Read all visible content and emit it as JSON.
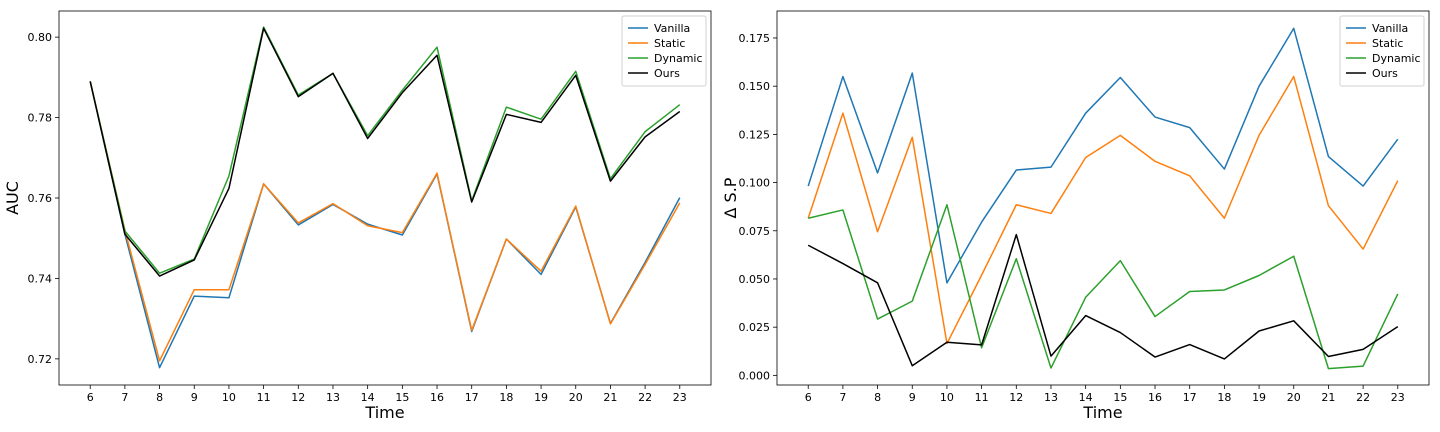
{
  "chart_data": [
    {
      "type": "line",
      "xlabel": "Time",
      "ylabel": "AUC",
      "x": [
        6,
        7,
        8,
        9,
        10,
        11,
        12,
        13,
        14,
        15,
        16,
        17,
        18,
        19,
        20,
        21,
        22,
        23
      ],
      "xlim": [
        5.1,
        23.9
      ],
      "ylim": [
        0.7135,
        0.8065
      ],
      "yticks": [
        0.72,
        0.74,
        0.76,
        0.78,
        0.8
      ],
      "ytick_labels": [
        "0.72",
        "0.74",
        "0.76",
        "0.78",
        "0.80"
      ],
      "grid": false,
      "legend": "top-right",
      "series": [
        {
          "name": "Vanilla",
          "color": "#1f77b4",
          "values": [
            0.789,
            0.751,
            0.7178,
            0.7356,
            0.7352,
            0.7635,
            0.7533,
            0.7584,
            0.7535,
            0.7508,
            0.766,
            0.7268,
            0.7498,
            0.741,
            0.7578,
            0.7288,
            0.744,
            0.7601
          ]
        },
        {
          "name": "Static",
          "color": "#ff7f0e",
          "values": [
            0.789,
            0.752,
            0.7195,
            0.7372,
            0.7372,
            0.7635,
            0.7538,
            0.7586,
            0.7531,
            0.7514,
            0.7662,
            0.7271,
            0.7498,
            0.7418,
            0.758,
            0.7287,
            0.7435,
            0.7588
          ]
        },
        {
          "name": "Dynamic",
          "color": "#2ca02c",
          "values": [
            0.789,
            0.7518,
            0.7413,
            0.7448,
            0.7655,
            0.8025,
            0.7856,
            0.791,
            0.7755,
            0.7868,
            0.7975,
            0.7593,
            0.7826,
            0.7796,
            0.7915,
            0.7648,
            0.7765,
            0.7832
          ]
        },
        {
          "name": "Ours",
          "color": "#000000",
          "values": [
            0.789,
            0.751,
            0.7406,
            0.7446,
            0.7624,
            0.8022,
            0.7852,
            0.791,
            0.7748,
            0.7862,
            0.7955,
            0.759,
            0.7808,
            0.7788,
            0.7905,
            0.7642,
            0.7752,
            0.7815
          ]
        }
      ]
    },
    {
      "type": "line",
      "xlabel": "Time",
      "ylabel": "Δ S.P",
      "x": [
        6,
        7,
        8,
        9,
        10,
        11,
        12,
        13,
        14,
        15,
        16,
        17,
        18,
        19,
        20,
        21,
        22,
        23
      ],
      "xlim": [
        5.1,
        23.9
      ],
      "ylim": [
        -0.005,
        0.189
      ],
      "yticks": [
        0.0,
        0.025,
        0.05,
        0.075,
        0.1,
        0.125,
        0.15,
        0.175
      ],
      "ytick_labels": [
        "0.000",
        "0.025",
        "0.050",
        "0.075",
        "0.100",
        "0.125",
        "0.150",
        "0.175"
      ],
      "grid": false,
      "legend": "top-right",
      "series": [
        {
          "name": "Vanilla",
          "color": "#1f77b4",
          "values": [
            0.0982,
            0.155,
            0.105,
            0.1568,
            0.048,
            0.0795,
            0.1065,
            0.108,
            0.136,
            0.1545,
            0.134,
            0.1285,
            0.107,
            0.15,
            0.18,
            0.1135,
            0.0982,
            0.1225
          ]
        },
        {
          "name": "Static",
          "color": "#ff7f0e",
          "values": [
            0.0815,
            0.136,
            0.0745,
            0.1235,
            0.0165,
            0.052,
            0.0885,
            0.084,
            0.113,
            0.1245,
            0.111,
            0.1035,
            0.0815,
            0.1245,
            0.155,
            0.088,
            0.0655,
            0.101
          ]
        },
        {
          "name": "Dynamic",
          "color": "#2ca02c",
          "values": [
            0.0815,
            0.0858,
            0.0292,
            0.0385,
            0.0885,
            0.0143,
            0.0605,
            0.0038,
            0.0405,
            0.0595,
            0.0305,
            0.0435,
            0.0443,
            0.0518,
            0.0618,
            0.0035,
            0.0048,
            0.0422
          ]
        },
        {
          "name": "Ours",
          "color": "#000000",
          "values": [
            0.0675,
            0.058,
            0.048,
            0.005,
            0.0172,
            0.0158,
            0.073,
            0.01,
            0.031,
            0.0222,
            0.0095,
            0.016,
            0.0085,
            0.023,
            0.0283,
            0.0098,
            0.0135,
            0.0253
          ]
        }
      ]
    }
  ]
}
